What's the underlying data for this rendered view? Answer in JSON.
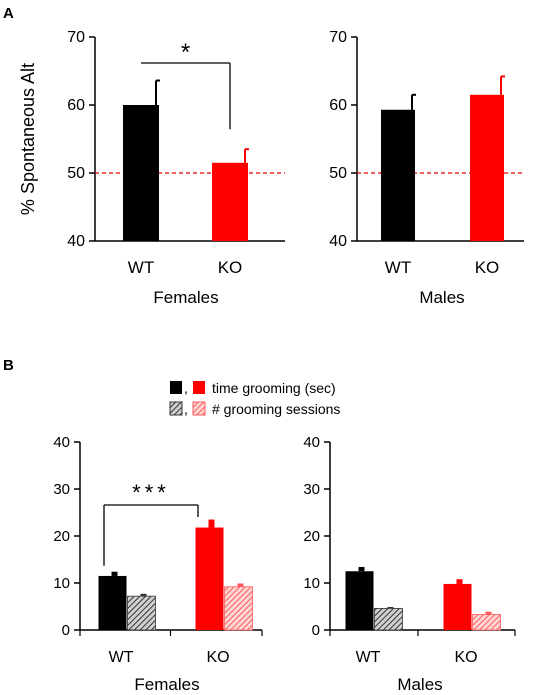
{
  "panels": {
    "A": {
      "label": "A"
    },
    "B": {
      "label": "B"
    }
  },
  "legend": {
    "separator": ",",
    "time_label": "time grooming (sec)",
    "sessions_label": "# grooming sessions"
  },
  "colors": {
    "wt": "#000000",
    "ko": "#ff0000",
    "wt_hatch": "#555555",
    "ko_hatch": "#ff8a8a",
    "baseline": "#e00000"
  },
  "chart_data": [
    {
      "id": "A-females",
      "type": "bar",
      "ylabel": "% Spontaneous Alt",
      "xlabel": "Females",
      "ylim": [
        40,
        70
      ],
      "yticks": [
        40,
        50,
        60,
        70
      ],
      "categories": [
        "WT",
        "KO"
      ],
      "values": [
        60,
        51.5
      ],
      "errors": [
        3.6,
        2.0
      ],
      "colors": [
        "#000000",
        "#ff0000"
      ],
      "reference_line": 50,
      "significance": {
        "from": "WT",
        "to": "KO",
        "label": "*"
      }
    },
    {
      "id": "A-males",
      "type": "bar",
      "xlabel": "Males",
      "ylim": [
        40,
        70
      ],
      "yticks": [
        40,
        50,
        60,
        70
      ],
      "categories": [
        "WT",
        "KO"
      ],
      "values": [
        59.3,
        61.5
      ],
      "errors": [
        2.2,
        2.7
      ],
      "colors": [
        "#000000",
        "#ff0000"
      ],
      "reference_line": 50
    },
    {
      "id": "B-females",
      "type": "bar",
      "xlabel": "Females",
      "ylim": [
        0,
        40
      ],
      "yticks": [
        0,
        10,
        20,
        30,
        40
      ],
      "categories": [
        "WT",
        "KO"
      ],
      "series": [
        {
          "values": [
            11.5,
            21.8
          ],
          "errors": [
            0.9,
            1.7
          ]
        },
        {
          "values": [
            7.2,
            9.2
          ],
          "errors": [
            0.5,
            0.7
          ]
        }
      ],
      "significance": {
        "from": "WT",
        "to": "KO",
        "label": "***"
      }
    },
    {
      "id": "B-males",
      "type": "bar",
      "xlabel": "Males",
      "ylim": [
        0,
        40
      ],
      "yticks": [
        0,
        10,
        20,
        30,
        40
      ],
      "categories": [
        "WT",
        "KO"
      ],
      "series": [
        {
          "values": [
            12.5,
            9.8
          ],
          "errors": [
            0.9,
            1.0
          ]
        },
        {
          "values": [
            4.6,
            3.3
          ],
          "errors": [
            0.3,
            0.6
          ]
        }
      ]
    }
  ]
}
